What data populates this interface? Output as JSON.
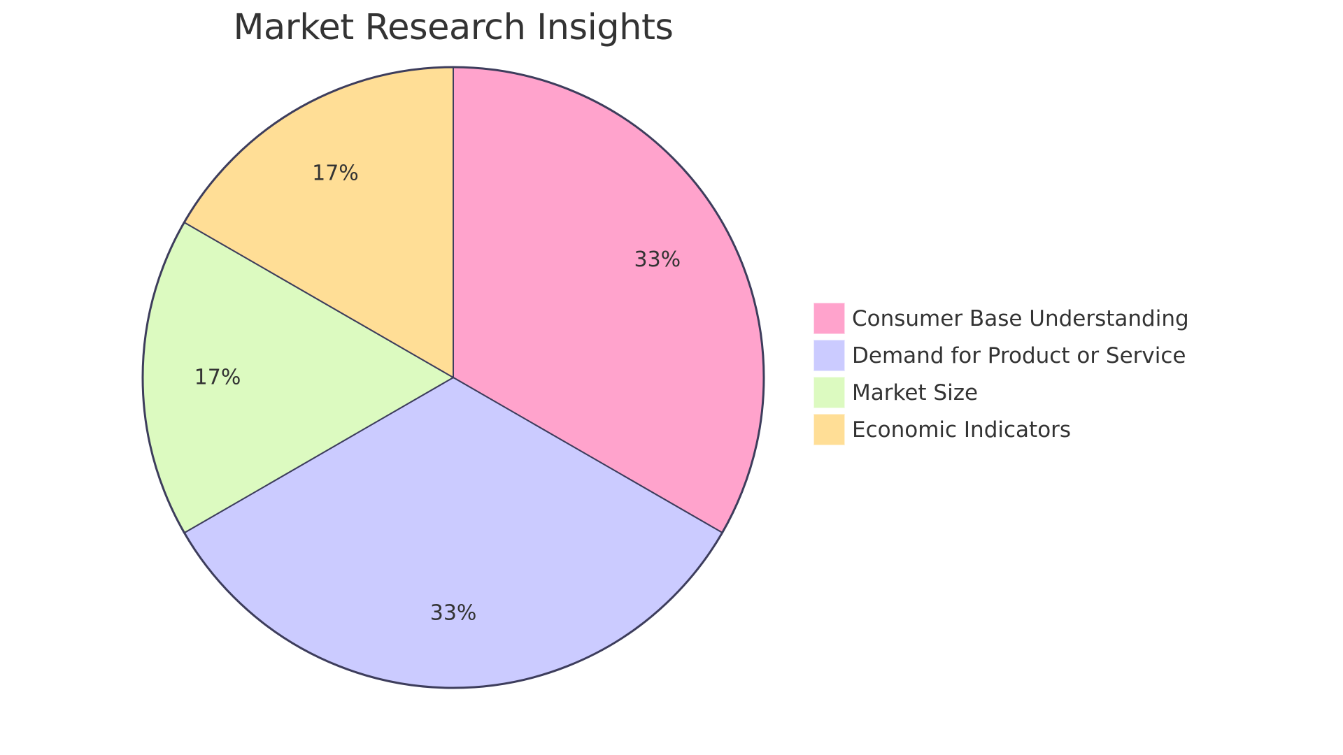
{
  "chart_data": {
    "type": "pie",
    "title": "Market Research Insights",
    "categories": [
      "Consumer Base Understanding",
      "Demand for Product or Service",
      "Market Size",
      "Economic Indicators"
    ],
    "values": [
      33.33,
      33.33,
      16.67,
      16.67
    ],
    "labels": [
      "33%",
      "33%",
      "17%",
      "17%"
    ],
    "colors": [
      "#FFA3CC",
      "#CBCBFF",
      "#DCFAC0",
      "#FFDE96"
    ],
    "legend_position": "right",
    "start_angle_deg": 0,
    "direction": "clockwise"
  },
  "title": "Market Research Insights",
  "legend": {
    "items": [
      {
        "label": "Consumer Base Understanding",
        "color": "#FFA3CC"
      },
      {
        "label": "Demand for Product or Service",
        "color": "#CBCBFF"
      },
      {
        "label": "Market Size",
        "color": "#DCFAC0"
      },
      {
        "label": "Economic Indicators",
        "color": "#FFDE96"
      }
    ]
  },
  "style": {
    "stroke": "#3d3d5c",
    "text": "#333333"
  }
}
